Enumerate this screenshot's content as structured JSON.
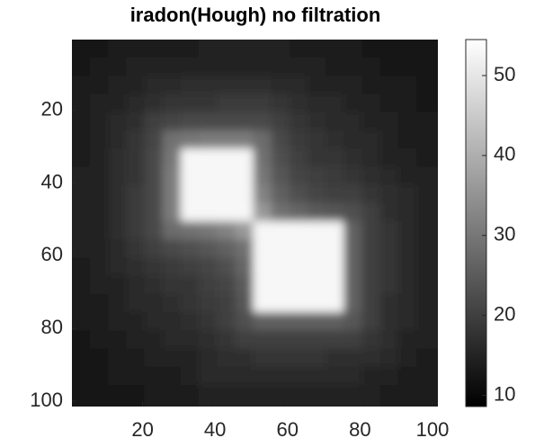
{
  "chart_data": {
    "type": "heatmap",
    "title": "iradon(Hough) no filtration",
    "colormap": "gray",
    "x": [
      3,
      8,
      13,
      18,
      23,
      28,
      33,
      38,
      43,
      48,
      53,
      58,
      63,
      68,
      73,
      78,
      83,
      88,
      93,
      98
    ],
    "y": [
      3,
      8,
      13,
      18,
      23,
      28,
      33,
      38,
      43,
      48,
      53,
      58,
      63,
      68,
      73,
      78,
      83,
      88,
      93,
      98
    ],
    "values": [
      [
        13,
        13,
        14,
        14,
        14,
        14,
        14,
        15,
        15,
        15,
        15,
        15,
        14,
        14,
        14,
        14,
        13,
        13,
        13,
        13
      ],
      [
        13,
        14,
        14,
        15,
        15,
        15,
        15,
        15,
        15,
        15,
        15,
        15,
        15,
        15,
        14,
        14,
        14,
        13,
        13,
        13
      ],
      [
        14,
        14,
        15,
        15,
        16,
        16,
        17,
        17,
        17,
        17,
        17,
        16,
        16,
        15,
        15,
        15,
        14,
        14,
        14,
        13
      ],
      [
        14,
        15,
        15,
        16,
        17,
        18,
        18,
        18,
        19,
        19,
        19,
        18,
        17,
        16,
        16,
        15,
        15,
        14,
        14,
        13
      ],
      [
        14,
        15,
        16,
        17,
        20,
        21,
        22,
        22,
        22,
        22,
        22,
        20,
        18,
        17,
        16,
        16,
        15,
        15,
        14,
        14
      ],
      [
        14,
        15,
        16,
        18,
        21,
        29,
        30,
        31,
        31,
        31,
        28,
        22,
        19,
        18,
        17,
        16,
        16,
        15,
        14,
        14
      ],
      [
        14,
        15,
        17,
        18,
        22,
        30,
        53,
        53,
        53,
        53,
        29,
        23,
        20,
        18,
        18,
        17,
        16,
        15,
        15,
        14
      ],
      [
        15,
        15,
        17,
        18,
        22,
        31,
        53,
        53,
        53,
        53,
        30,
        24,
        21,
        20,
        19,
        18,
        17,
        16,
        15,
        15
      ],
      [
        15,
        15,
        17,
        19,
        22,
        31,
        53,
        53,
        53,
        53,
        32,
        26,
        23,
        21,
        20,
        20,
        18,
        17,
        16,
        15
      ],
      [
        15,
        15,
        17,
        19,
        22,
        31,
        53,
        53,
        53,
        53,
        36,
        29,
        27,
        25,
        24,
        23,
        20,
        17,
        16,
        15
      ],
      [
        15,
        15,
        17,
        19,
        22,
        28,
        29,
        30,
        32,
        36,
        53,
        53,
        53,
        53,
        53,
        26,
        20,
        18,
        16,
        15
      ],
      [
        15,
        15,
        16,
        18,
        20,
        22,
        23,
        24,
        26,
        29,
        53,
        53,
        53,
        53,
        53,
        26,
        20,
        18,
        16,
        15
      ],
      [
        14,
        15,
        16,
        17,
        18,
        19,
        20,
        21,
        23,
        27,
        53,
        53,
        53,
        53,
        53,
        26,
        20,
        18,
        16,
        15
      ],
      [
        14,
        15,
        15,
        16,
        17,
        18,
        18,
        20,
        21,
        25,
        53,
        53,
        53,
        53,
        53,
        26,
        20,
        18,
        16,
        15
      ],
      [
        14,
        14,
        15,
        16,
        16,
        17,
        18,
        19,
        20,
        24,
        53,
        53,
        53,
        53,
        53,
        26,
        20,
        17,
        16,
        15
      ],
      [
        14,
        14,
        15,
        15,
        16,
        16,
        17,
        18,
        20,
        23,
        26,
        26,
        26,
        26,
        26,
        24,
        20,
        17,
        16,
        15
      ],
      [
        13,
        14,
        14,
        15,
        15,
        16,
        16,
        17,
        18,
        20,
        20,
        20,
        20,
        20,
        20,
        20,
        18,
        17,
        15,
        15
      ],
      [
        13,
        13,
        14,
        14,
        15,
        15,
        15,
        16,
        17,
        17,
        18,
        18,
        18,
        18,
        17,
        17,
        17,
        16,
        15,
        14
      ],
      [
        13,
        13,
        14,
        14,
        14,
        14,
        15,
        16,
        16,
        16,
        16,
        16,
        16,
        16,
        16,
        16,
        15,
        15,
        14,
        14
      ],
      [
        13,
        13,
        13,
        13,
        14,
        14,
        14,
        15,
        15,
        15,
        15,
        15,
        15,
        15,
        15,
        15,
        15,
        14,
        14,
        14
      ]
    ],
    "xlim": [
      0.5,
      101.5
    ],
    "ylim": [
      0.5,
      101.5
    ],
    "y_reversed": true,
    "xticks": [
      20,
      40,
      60,
      80,
      100
    ],
    "yticks": [
      20,
      40,
      60,
      80,
      100
    ],
    "clim": [
      8.6,
      54.5
    ],
    "colorbar_ticks": [
      10,
      20,
      30,
      40,
      50
    ]
  }
}
